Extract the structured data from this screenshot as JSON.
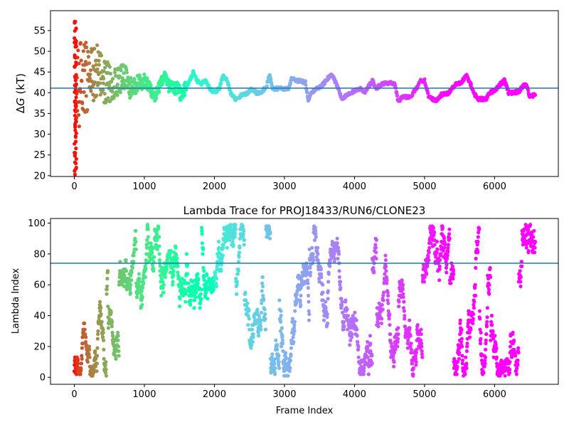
{
  "chart_data": [
    {
      "type": "scatter",
      "title": "",
      "xlabel": "",
      "ylabel": "ΔG (kT)",
      "ylabel_parts": {
        "symbol": "Δ",
        "var": "G",
        "unit": " (kT)"
      },
      "xlim": [
        -340,
        6910
      ],
      "ylim": [
        19.8,
        59.8
      ],
      "xticks": [
        0,
        1000,
        2000,
        3000,
        4000,
        5000,
        6000
      ],
      "yticks": [
        20,
        25,
        30,
        35,
        40,
        45,
        50,
        55
      ],
      "hline": 41.1,
      "hline_color": "#1f77b4",
      "colormap": "rainbow_r",
      "x_range": [
        0,
        6580
      ],
      "trace_anchors": [
        [
          0,
          40
        ],
        [
          30,
          45
        ],
        [
          60,
          42
        ],
        [
          100,
          44
        ],
        [
          160,
          43
        ],
        [
          230,
          44
        ],
        [
          320,
          45
        ],
        [
          430,
          43
        ],
        [
          520,
          42
        ],
        [
          620,
          43
        ],
        [
          720,
          44
        ],
        [
          800,
          41
        ],
        [
          900,
          42
        ],
        [
          1000,
          43
        ],
        [
          1080,
          41
        ],
        [
          1130,
          39
        ],
        [
          1200,
          41
        ],
        [
          1280,
          44
        ],
        [
          1330,
          42
        ],
        [
          1400,
          41
        ],
        [
          1480,
          41
        ],
        [
          1530,
          39
        ],
        [
          1580,
          41
        ],
        [
          1650,
          43
        ],
        [
          1700,
          45
        ],
        [
          1750,
          43
        ],
        [
          1800,
          42
        ],
        [
          1870,
          43
        ],
        [
          1940,
          41
        ],
        [
          2000,
          40
        ],
        [
          2070,
          41
        ],
        [
          2120,
          44
        ],
        [
          2180,
          43
        ],
        [
          2230,
          40
        ],
        [
          2300,
          38.5
        ],
        [
          2400,
          39.5
        ],
        [
          2480,
          40
        ],
        [
          2540,
          41
        ],
        [
          2600,
          40
        ],
        [
          2680,
          40
        ],
        [
          2750,
          42
        ],
        [
          2790,
          44.5
        ],
        [
          2830,
          41
        ],
        [
          2900,
          41
        ],
        [
          3000,
          41
        ],
        [
          3060,
          41
        ],
        [
          3100,
          43.5
        ],
        [
          3180,
          43
        ],
        [
          3300,
          42.5
        ],
        [
          3340,
          38
        ],
        [
          3380,
          40
        ],
        [
          3460,
          41
        ],
        [
          3520,
          41.5
        ],
        [
          3600,
          43
        ],
        [
          3660,
          44.5
        ],
        [
          3700,
          43.5
        ],
        [
          3760,
          41.5
        ],
        [
          3820,
          38.5
        ],
        [
          3900,
          39.5
        ],
        [
          4000,
          40.5
        ],
        [
          4100,
          41
        ],
        [
          4150,
          40
        ],
        [
          4200,
          41.5
        ],
        [
          4260,
          43
        ],
        [
          4300,
          41
        ],
        [
          4380,
          42
        ],
        [
          4500,
          42.5
        ],
        [
          4580,
          42
        ],
        [
          4620,
          38
        ],
        [
          4700,
          39
        ],
        [
          4800,
          39
        ],
        [
          4880,
          41
        ],
        [
          4950,
          43
        ],
        [
          5000,
          43
        ],
        [
          5060,
          39
        ],
        [
          5160,
          38
        ],
        [
          5240,
          39.5
        ],
        [
          5350,
          40
        ],
        [
          5440,
          42
        ],
        [
          5520,
          42.5
        ],
        [
          5600,
          44
        ],
        [
          5660,
          42
        ],
        [
          5700,
          40
        ],
        [
          5760,
          38.5
        ],
        [
          5880,
          38.5
        ],
        [
          5920,
          40
        ],
        [
          6000,
          40.5
        ],
        [
          6080,
          42
        ],
        [
          6140,
          43
        ],
        [
          6200,
          40
        ],
        [
          6280,
          40
        ],
        [
          6360,
          40.5
        ],
        [
          6420,
          42
        ],
        [
          6470,
          41.5
        ],
        [
          6500,
          39
        ],
        [
          6580,
          39.5
        ]
      ]
    },
    {
      "type": "scatter",
      "title": "Lambda Trace for PROJ18433/RUN6/CLONE23",
      "xlabel": "Frame Index",
      "ylabel": "Lambda Index",
      "xlim": [
        -340,
        6910
      ],
      "ylim": [
        -4.5,
        103
      ],
      "xticks": [
        0,
        1000,
        2000,
        3000,
        4000,
        5000,
        6000
      ],
      "yticks": [
        0,
        20,
        40,
        60,
        80,
        100
      ],
      "hline": 74,
      "hline_color": "#1f77b4",
      "colormap": "rainbow_r",
      "x_range": [
        0,
        6580
      ],
      "lambda_range": [
        1,
        99
      ]
    }
  ]
}
